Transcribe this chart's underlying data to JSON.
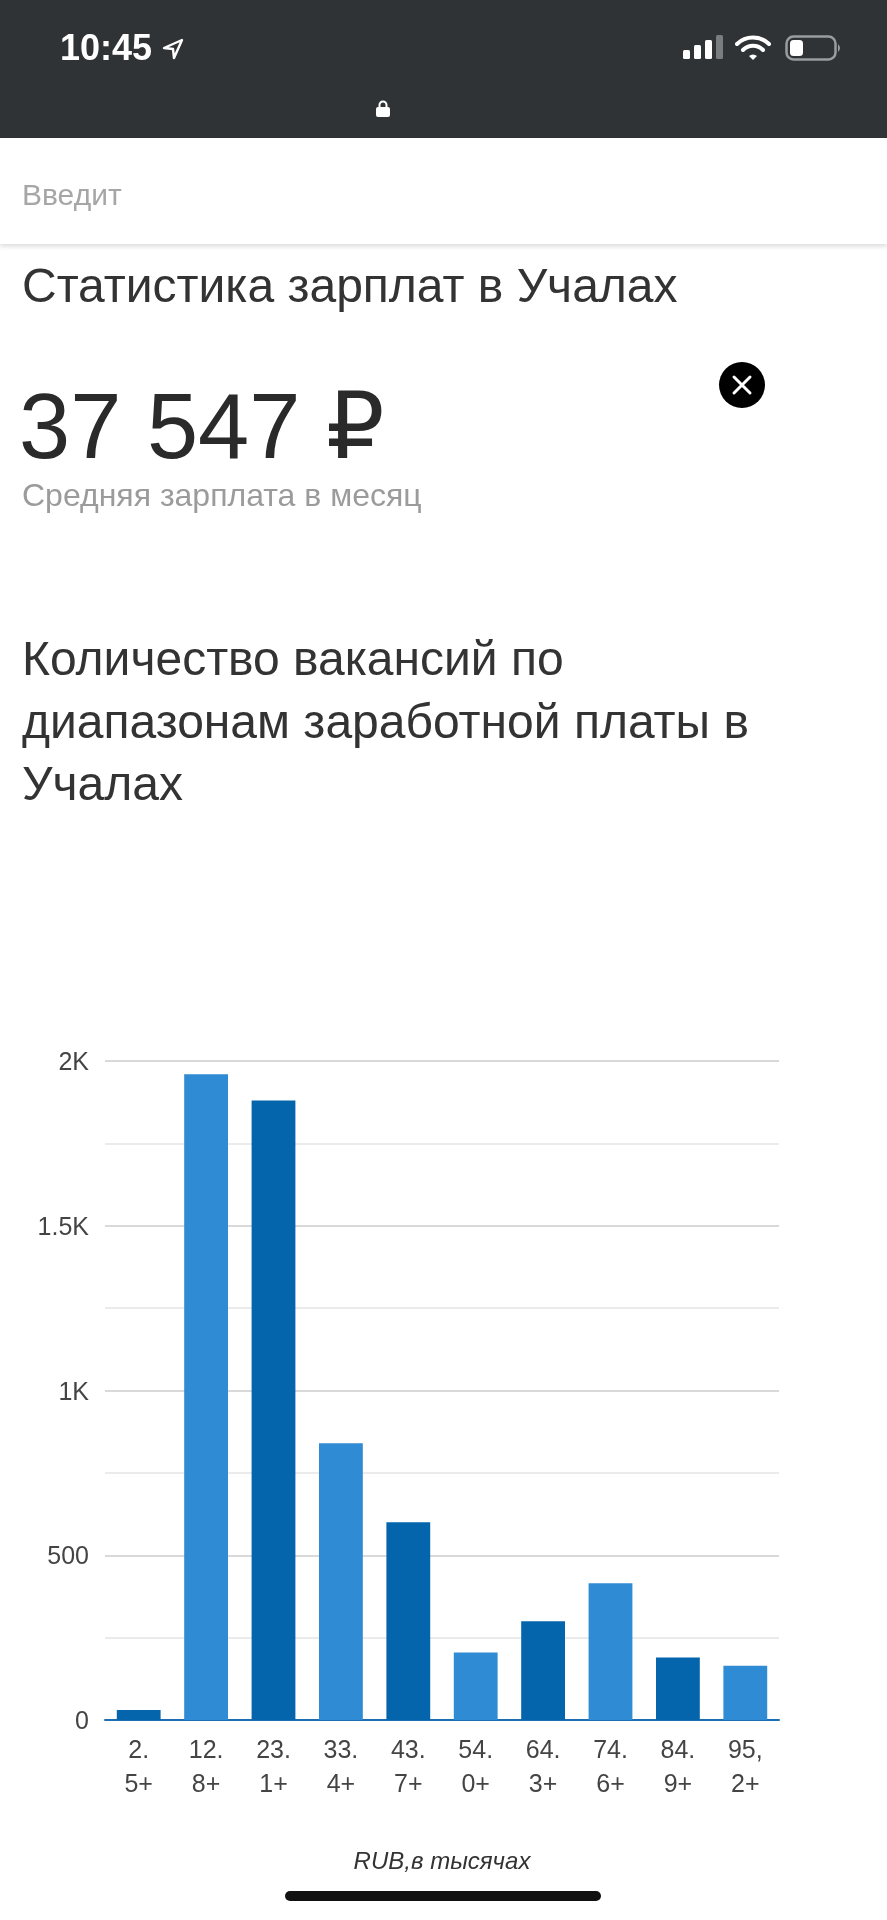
{
  "chart_data": {
    "type": "bar",
    "title": "Количество вакансий по диапазонам заработной платы в Учалах",
    "xlabel": "RUB,в тысячах",
    "annotations": [
      "10:45",
      "Введит",
      "Статистика зарплат в Учалах",
      "37 547 ₽",
      "Средняя зарплата в месяц"
    ],
    "categories": [
      "2.5+",
      "12.8+",
      "23.1+",
      "33.4+",
      "43.7+",
      "54.0+",
      "64.3+",
      "74.6+",
      "84.9+",
      "95,2+"
    ],
    "values": [
      30,
      1960,
      1880,
      840,
      600,
      205,
      300,
      415,
      190,
      165
    ],
    "colors": [
      "#0565ac",
      "#2e8bd4",
      "#0565ac",
      "#2e8bd4",
      "#0565ac",
      "#2e8bd4",
      "#0565ac",
      "#2e8bd4",
      "#0565ac",
      "#2e8bd4"
    ],
    "ylim": [
      0,
      2000
    ],
    "yticks": [
      0,
      {
        "value": 250,
        "label": null
      },
      500,
      {
        "value": 750,
        "label": null
      },
      {
        "value": 1000,
        "label": "1K"
      },
      {
        "value": 1250,
        "label": null
      },
      {
        "value": 1500,
        "label": "1.5K"
      },
      {
        "value": 1750,
        "label": null
      },
      {
        "value": 2000,
        "label": "2K"
      }
    ],
    "grid": "y"
  }
}
